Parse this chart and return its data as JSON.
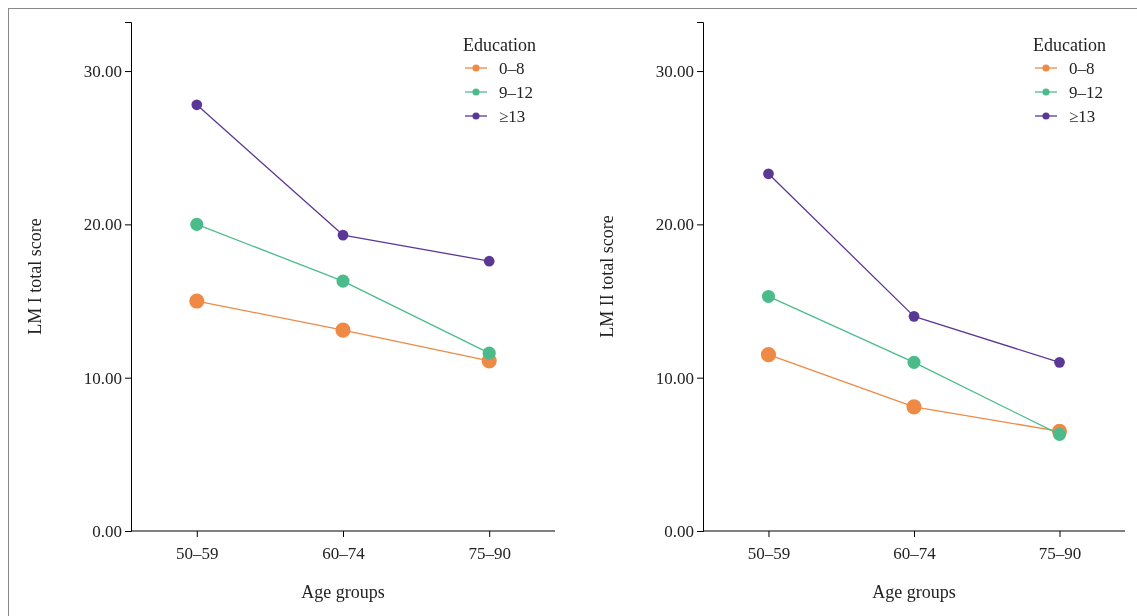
{
  "chart_data": [
    {
      "type": "line",
      "xlabel": "Age groups",
      "ylabel": "LM I total score",
      "legend_title": "Education",
      "categories": [
        "50–59",
        "60–74",
        "75–90"
      ],
      "series": [
        {
          "name": "0–8",
          "color": "#ee8a45",
          "values": [
            15.0,
            13.1,
            11.1
          ]
        },
        {
          "name": "9–12",
          "color": "#4cbb8b",
          "values": [
            20.0,
            16.3,
            11.6
          ]
        },
        {
          "name": "≥13",
          "color": "#5b3796",
          "values": [
            27.8,
            19.3,
            17.6
          ]
        }
      ],
      "ylim": [
        0,
        33.2
      ],
      "yticks": [
        {
          "value": 0,
          "label": "0.00"
        },
        {
          "value": 10,
          "label": "10.00"
        },
        {
          "value": 20,
          "label": "20.00"
        },
        {
          "value": 30,
          "label": "30.00"
        }
      ],
      "grid": false,
      "legend": "top right",
      "marker": "circle",
      "line_style": "solid"
    },
    {
      "type": "line",
      "xlabel": "Age groups",
      "ylabel": "LM II total score",
      "legend_title": "Education",
      "categories": [
        "50–59",
        "60–74",
        "75–90"
      ],
      "series": [
        {
          "name": "0–8",
          "color": "#ee8a45",
          "values": [
            11.5,
            8.1,
            6.5
          ]
        },
        {
          "name": "9–12",
          "color": "#4cbb8b",
          "values": [
            15.3,
            11.0,
            6.3
          ]
        },
        {
          "name": "≥13",
          "color": "#5b3796",
          "values": [
            23.3,
            14.0,
            11.0
          ]
        }
      ],
      "ylim": [
        0,
        33.2
      ],
      "yticks": [
        {
          "value": 0,
          "label": "0.00"
        },
        {
          "value": 10,
          "label": "10.00"
        },
        {
          "value": 20,
          "label": "20.00"
        },
        {
          "value": 30,
          "label": "30.00"
        }
      ],
      "grid": false,
      "legend": "top right",
      "marker": "circle",
      "line_style": "solid"
    }
  ]
}
